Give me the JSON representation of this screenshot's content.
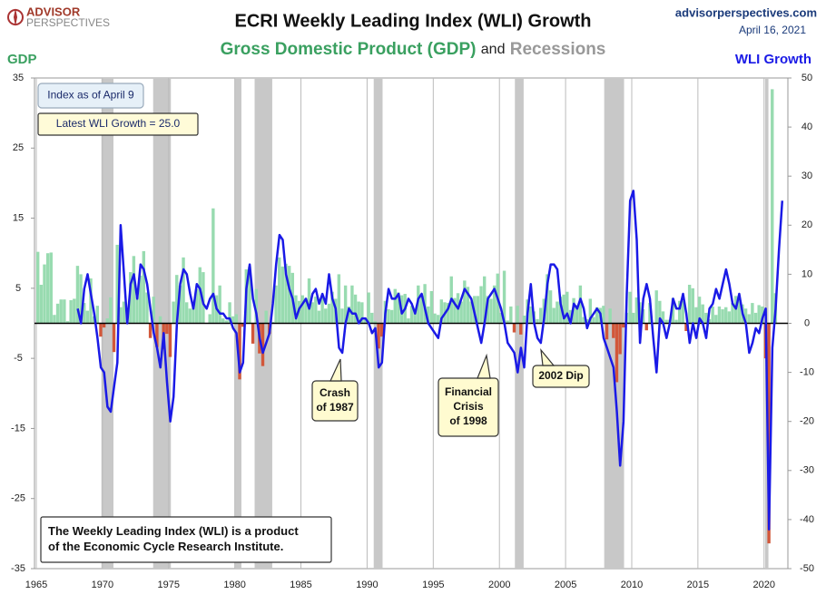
{
  "logo": [
    "ADVISOR",
    "PERSPECTIVES"
  ],
  "site": "advisorperspectives.com",
  "date": "April 16, 2021",
  "chart_data": {
    "type": "combo",
    "title": "ECRI Weekly Leading Index (WLI) Growth",
    "subtitle_parts": [
      "Gross Domestic Product (GDP)",
      "and",
      "Recessions"
    ],
    "ylabel": "GDP",
    "y2label": "WLI Growth",
    "xlim": [
      1965,
      2021.8
    ],
    "xticks": [
      1965,
      1970,
      1975,
      1980,
      1985,
      1990,
      1995,
      2000,
      2005,
      2010,
      2015,
      2020
    ],
    "ylim": [
      -35,
      35
    ],
    "yticks": [
      35,
      25,
      15,
      5,
      -5,
      -15,
      -25,
      -35
    ],
    "y2lim": [
      -50,
      50
    ],
    "y2ticks": [
      50,
      40,
      30,
      20,
      10,
      0,
      -10,
      -20,
      -30,
      -40,
      -50
    ],
    "recession_color": "#c8c8c8",
    "recessions": [
      [
        1969.92,
        1970.83
      ],
      [
        1973.83,
        1975.17
      ],
      [
        1980.0,
        1980.5
      ],
      [
        1981.5,
        1982.83
      ],
      [
        1990.5,
        1991.17
      ],
      [
        2001.17,
        2001.83
      ],
      [
        2007.92,
        2009.42
      ],
      [
        2020.08,
        2020.33
      ]
    ],
    "x": [
      1965,
      1965.25,
      1965.5,
      1965.75,
      1966,
      1966.25,
      1966.5,
      1966.75,
      1967,
      1967.25,
      1967.5,
      1967.75,
      1968,
      1968.25,
      1968.5,
      1968.75,
      1969,
      1969.25,
      1969.5,
      1969.75,
      1970,
      1970.25,
      1970.5,
      1970.75,
      1971,
      1971.25,
      1971.5,
      1971.75,
      1972,
      1972.25,
      1972.5,
      1972.75,
      1973,
      1973.25,
      1973.5,
      1973.75,
      1974,
      1974.25,
      1974.5,
      1974.75,
      1975,
      1975.25,
      1975.5,
      1975.75,
      1976,
      1976.25,
      1976.5,
      1976.75,
      1977,
      1977.25,
      1977.5,
      1977.75,
      1978,
      1978.25,
      1978.5,
      1978.75,
      1979,
      1979.25,
      1979.5,
      1979.75,
      1980,
      1980.25,
      1980.5,
      1980.75,
      1981,
      1981.25,
      1981.5,
      1981.75,
      1982,
      1982.25,
      1982.5,
      1982.75,
      1983,
      1983.25,
      1983.5,
      1983.75,
      1984,
      1984.25,
      1984.5,
      1984.75,
      1985,
      1985.25,
      1985.5,
      1985.75,
      1986,
      1986.25,
      1986.5,
      1986.75,
      1987,
      1987.25,
      1987.5,
      1987.75,
      1988,
      1988.25,
      1988.5,
      1988.75,
      1989,
      1989.25,
      1989.5,
      1989.75,
      1990,
      1990.25,
      1990.5,
      1990.75,
      1991,
      1991.25,
      1991.5,
      1991.75,
      1992,
      1992.25,
      1992.5,
      1992.75,
      1993,
      1993.25,
      1993.5,
      1993.75,
      1994,
      1994.25,
      1994.5,
      1994.75,
      1995,
      1995.25,
      1995.5,
      1995.75,
      1996,
      1996.25,
      1996.5,
      1996.75,
      1997,
      1997.25,
      1997.5,
      1997.75,
      1998,
      1998.25,
      1998.5,
      1998.75,
      1999,
      1999.25,
      1999.5,
      1999.75,
      2000,
      2000.25,
      2000.5,
      2000.75,
      2001,
      2001.25,
      2001.5,
      2001.75,
      2002,
      2002.25,
      2002.5,
      2002.75,
      2003,
      2003.25,
      2003.5,
      2003.75,
      2004,
      2004.25,
      2004.5,
      2004.75,
      2005,
      2005.25,
      2005.5,
      2005.75,
      2006,
      2006.25,
      2006.5,
      2006.75,
      2007,
      2007.25,
      2007.5,
      2007.75,
      2008,
      2008.25,
      2008.5,
      2008.75,
      2009,
      2009.25,
      2009.5,
      2009.75,
      2010,
      2010.25,
      2010.5,
      2010.75,
      2011,
      2011.25,
      2011.5,
      2011.75,
      2012,
      2012.25,
      2012.5,
      2012.75,
      2013,
      2013.25,
      2013.5,
      2013.75,
      2014,
      2014.25,
      2014.5,
      2014.75,
      2015,
      2015.25,
      2015.5,
      2015.75,
      2016,
      2016.25,
      2016.5,
      2016.75,
      2017,
      2017.25,
      2017.5,
      2017.75,
      2018,
      2018.25,
      2018.5,
      2018.75,
      2019,
      2019.25,
      2019.5,
      2019.75,
      2020,
      2020.25,
      2020.5,
      2020.75,
      2021,
      2021.25
    ],
    "series": [
      {
        "name": "Gross Domestic Product (GDP)",
        "type": "bar",
        "color": "#98dbb0",
        "negative_color": "#d2573a",
        "values": [
          10.2,
          5.5,
          8.4,
          10.0,
          10.1,
          1.2,
          2.8,
          3.4,
          3.4,
          0.3,
          3.3,
          3.5,
          8.2,
          7.0,
          2.9,
          1.8,
          6.4,
          1.0,
          2.5,
          -1.9,
          -0.6,
          0.7,
          3.7,
          -4.1,
          11.2,
          2.3,
          3.1,
          1.0,
          7.3,
          9.6,
          3.8,
          6.8,
          10.3,
          4.4,
          -2.1,
          3.8,
          -3.4,
          1.0,
          -3.7,
          -1.5,
          -4.8,
          3.1,
          6.9,
          5.4,
          9.4,
          3.0,
          2.1,
          2.9,
          4.9,
          8.0,
          7.3,
          0.0,
          1.3,
          16.4,
          4.0,
          5.4,
          0.7,
          0.4,
          3.0,
          1.0,
          1.3,
          -8.0,
          -0.5,
          7.7,
          8.1,
          -2.9,
          4.9,
          -4.3,
          -6.1,
          1.8,
          -1.5,
          0.2,
          5.4,
          9.4,
          8.1,
          8.5,
          8.2,
          7.2,
          4.0,
          3.2,
          4.0,
          3.6,
          6.4,
          3.0,
          3.8,
          1.8,
          3.9,
          2.1,
          2.8,
          4.5,
          3.5,
          7.0,
          2.1,
          5.4,
          2.4,
          5.4,
          4.1,
          3.1,
          3.0,
          0.8,
          4.4,
          1.5,
          0.3,
          -3.6,
          -1.9,
          3.2,
          2.0,
          1.9,
          4.9,
          4.4,
          4.0,
          4.2,
          0.7,
          2.5,
          1.9,
          5.4,
          3.9,
          5.6,
          2.4,
          4.6,
          1.4,
          1.2,
          3.4,
          3.0,
          2.9,
          6.7,
          3.6,
          4.3,
          3.1,
          6.1,
          5.2,
          3.1,
          3.9,
          3.9,
          5.3,
          6.7,
          3.9,
          3.5,
          5.4,
          7.1,
          1.5,
          7.5,
          0.4,
          2.4,
          -1.3,
          2.5,
          -1.6,
          1.1,
          3.4,
          2.4,
          1.7,
          0.6,
          2.2,
          3.5,
          7.0,
          4.7,
          2.2,
          3.1,
          3.8,
          4.1,
          4.5,
          1.9,
          3.6,
          2.6,
          5.4,
          0.9,
          0.6,
          3.5,
          0.9,
          2.3,
          2.2,
          2.5,
          -2.3,
          2.1,
          -2.1,
          -8.4,
          -4.4,
          -0.6,
          1.5,
          4.5,
          1.5,
          3.7,
          3.0,
          2.0,
          -1.0,
          2.9,
          -0.1,
          4.7,
          3.2,
          1.7,
          0.5,
          0.5,
          3.6,
          0.5,
          3.2,
          3.2,
          -1.1,
          5.5,
          5.0,
          2.3,
          3.8,
          2.7,
          1.5,
          0.6,
          2.4,
          1.2,
          2.4,
          2.0,
          2.3,
          1.7,
          2.9,
          3.9,
          3.8,
          2.7,
          2.1,
          1.3,
          2.9,
          1.5,
          2.6,
          2.4,
          -5.0,
          -31.4,
          33.4,
          4.3,
          null,
          null
        ]
      },
      {
        "name": "WLI Growth",
        "type": "line",
        "axis": "y2",
        "color": "#1a1ae6",
        "values": [
          null,
          null,
          null,
          null,
          null,
          null,
          null,
          null,
          null,
          null,
          null,
          null,
          3,
          0,
          7,
          10,
          6,
          2,
          -3,
          -9,
          -10,
          -17,
          -18,
          -13,
          -8,
          20,
          10,
          0,
          8,
          10,
          5,
          12,
          11,
          8,
          3,
          -2,
          -5,
          -9,
          -2,
          -12,
          -20,
          -15,
          0,
          8,
          11,
          10,
          6,
          3,
          8,
          7,
          4,
          3,
          5,
          6,
          3,
          2,
          2,
          1,
          1,
          -1,
          -2,
          -10,
          -8,
          7,
          12,
          5,
          2,
          -3,
          -6,
          -4,
          -2,
          4,
          12,
          18,
          17,
          10,
          7,
          5,
          1,
          3,
          4,
          5,
          3,
          6,
          7,
          4,
          6,
          4,
          10,
          5,
          3,
          -5,
          -6,
          0,
          3,
          2,
          2,
          0,
          1,
          1,
          0,
          -2,
          -1,
          -9,
          -8,
          2,
          7,
          5,
          5,
          6,
          2,
          3,
          5,
          4,
          2,
          5,
          6,
          3,
          0,
          -1,
          -2,
          -3,
          1,
          2,
          3,
          5,
          4,
          3,
          5,
          7,
          6,
          5,
          2,
          -1,
          -4,
          0,
          5,
          6,
          7,
          5,
          3,
          0,
          -4,
          -5,
          -6,
          -10,
          -5,
          -9,
          2,
          8,
          0,
          -3,
          -4,
          1,
          8,
          12,
          12,
          11,
          4,
          1,
          2,
          0,
          4,
          3,
          5,
          3,
          -1,
          1,
          2,
          3,
          2,
          -3,
          -5,
          -7,
          -9,
          -18,
          -29,
          -20,
          6,
          25,
          27,
          17,
          -4,
          5,
          8,
          5,
          -3,
          -10,
          1,
          0,
          -3,
          0,
          5,
          3,
          3,
          6,
          2,
          -4,
          0,
          -3,
          1,
          0,
          -3,
          3,
          4,
          7,
          5,
          8,
          11,
          8,
          4,
          3,
          6,
          2,
          0,
          -6,
          -4,
          -1,
          -2,
          1,
          3,
          -42,
          -5,
          3,
          15,
          25
        ]
      }
    ],
    "annotations": [
      {
        "lines": [
          "Index as of April 9"
        ]
      },
      {
        "lines": [
          "Latest WLI Growth = 25.0"
        ]
      },
      {
        "lines": [
          "Crash",
          "of 1987"
        ]
      },
      {
        "lines": [
          "Financial",
          "Crisis",
          "of 1998"
        ]
      },
      {
        "lines": [
          "2002 Dip"
        ]
      },
      {
        "lines": [
          "The Weekly Leading Index (WLI) is a product",
          "of the Economic Cycle Research Institute."
        ]
      }
    ]
  }
}
